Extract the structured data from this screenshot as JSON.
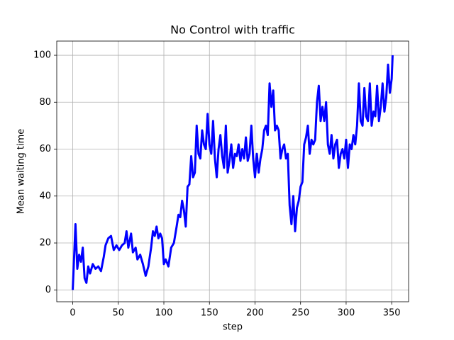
{
  "chart_data": {
    "type": "line",
    "title": "No Control with traffic",
    "x_label": "step",
    "y_label": "Mean waiting time",
    "x": [
      0,
      3,
      5,
      7,
      9,
      11,
      13,
      15,
      17,
      19,
      22,
      25,
      28,
      31,
      34,
      36,
      39,
      42,
      45,
      48,
      51,
      54,
      57,
      59,
      61,
      64,
      66,
      69,
      71,
      74,
      77,
      80,
      83,
      86,
      88,
      90,
      92,
      94,
      96,
      98,
      100,
      102,
      105,
      108,
      111,
      114,
      116,
      118,
      120,
      122,
      124,
      126,
      128,
      130,
      132,
      134,
      136,
      138,
      140,
      142,
      144,
      146,
      148,
      150,
      152,
      154,
      156,
      158,
      160,
      162,
      164,
      166,
      168,
      170,
      172,
      174,
      176,
      178,
      180,
      182,
      184,
      186,
      188,
      190,
      192,
      194,
      196,
      198,
      200,
      202,
      204,
      206,
      208,
      210,
      212,
      214,
      216,
      218,
      220,
      222,
      224,
      226,
      228,
      230,
      232,
      234,
      236,
      238,
      240,
      242,
      244,
      246,
      248,
      250,
      252,
      254,
      256,
      258,
      260,
      262,
      264,
      266,
      268,
      270,
      272,
      274,
      276,
      278,
      280,
      282,
      284,
      286,
      288,
      290,
      292,
      294,
      296,
      298,
      300,
      302,
      304,
      306,
      308,
      310,
      312,
      314,
      316,
      318,
      320,
      322,
      324,
      326,
      328,
      330,
      332,
      334,
      336,
      338,
      340,
      342,
      344,
      346,
      348,
      350,
      351
    ],
    "series": [
      {
        "color": "#0000ff",
        "values": [
          0,
          28,
          9,
          15,
          12,
          18,
          5,
          3,
          10,
          7,
          11,
          9,
          10,
          8,
          14,
          19,
          22,
          23,
          17,
          19,
          17,
          19,
          20,
          25,
          18,
          24,
          16,
          18,
          13,
          15,
          11,
          6,
          10,
          18,
          25,
          23,
          27,
          22,
          24,
          22,
          11,
          13,
          10,
          18,
          20,
          27,
          32,
          31,
          38,
          34,
          27,
          44,
          45,
          57,
          48,
          50,
          70,
          58,
          56,
          68,
          62,
          60,
          75,
          62,
          58,
          72,
          56,
          48,
          60,
          66,
          57,
          52,
          70,
          50,
          55,
          62,
          52,
          58,
          57,
          62,
          55,
          60,
          56,
          65,
          55,
          58,
          70,
          56,
          48,
          58,
          50,
          56,
          60,
          68,
          70,
          66,
          88,
          78,
          85,
          68,
          70,
          68,
          56,
          60,
          62,
          56,
          58,
          36,
          28,
          40,
          25,
          35,
          38,
          44,
          46,
          62,
          65,
          70,
          58,
          64,
          62,
          64,
          80,
          87,
          72,
          78,
          72,
          80,
          62,
          58,
          66,
          56,
          62,
          64,
          52,
          58,
          60,
          56,
          64,
          52,
          62,
          60,
          66,
          62,
          70,
          88,
          72,
          70,
          86,
          74,
          72,
          88,
          70,
          76,
          74,
          87,
          72,
          78,
          88,
          76,
          82,
          96,
          84,
          90,
          100
        ]
      }
    ],
    "xlim": [
      -17.55,
      368.55
    ],
    "ylim": [
      -5.05,
      106.05
    ],
    "xticks": [
      0,
      50,
      100,
      150,
      200,
      250,
      300,
      350
    ],
    "yticks": [
      0,
      20,
      40,
      60,
      80,
      100
    ],
    "grid": true
  }
}
